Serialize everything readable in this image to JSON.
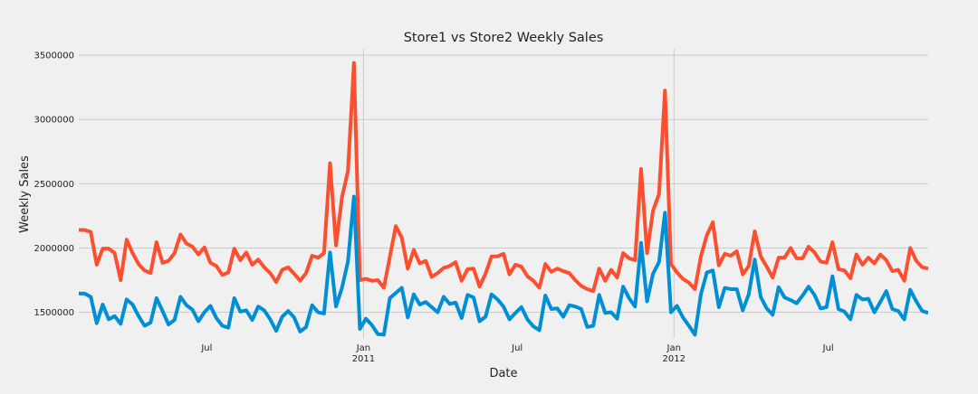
{
  "chart_data": {
    "type": "line",
    "title": "Store1 vs Store2 Weekly Sales",
    "xlabel": "Date",
    "ylabel": "Weekly Sales",
    "ylim": [
      1300000,
      3550000
    ],
    "yticks": [
      1500000,
      2000000,
      2500000,
      3000000,
      3500000
    ],
    "ytick_labels": [
      "1500000",
      "2000000",
      "2500000",
      "3000000",
      "3500000"
    ],
    "week_range": [
      0,
      142
    ],
    "xticks": [
      {
        "week": 21.4,
        "line1": "Jul",
        "line2": ""
      },
      {
        "week": 47.6,
        "line1": "Jan",
        "line2": "2011"
      },
      {
        "week": 73.3,
        "line1": "Jul",
        "line2": ""
      },
      {
        "week": 99.5,
        "line1": "Jan",
        "line2": "2012"
      },
      {
        "week": 125.3,
        "line1": "Jul",
        "line2": ""
      }
    ],
    "grid": true,
    "series": [
      {
        "name": "Store1",
        "color": "#fc4f30",
        "values": [
          2140000,
          2140000,
          2125000,
          1870000,
          1995000,
          1995000,
          1960000,
          1750000,
          2065000,
          1960000,
          1875000,
          1825000,
          1805000,
          2045000,
          1885000,
          1900000,
          1960000,
          2105000,
          2035000,
          2010000,
          1950000,
          2005000,
          1885000,
          1860000,
          1790000,
          1810000,
          1995000,
          1905000,
          1965000,
          1870000,
          1910000,
          1850000,
          1805000,
          1735000,
          1830000,
          1850000,
          1800000,
          1745000,
          1805000,
          1940000,
          1925000,
          1960000,
          2660000,
          2020000,
          2395000,
          2600000,
          3440000,
          1750000,
          1760000,
          1745000,
          1750000,
          1690000,
          1930000,
          2170000,
          2080000,
          1840000,
          1985000,
          1880000,
          1900000,
          1775000,
          1805000,
          1845000,
          1860000,
          1890000,
          1745000,
          1835000,
          1840000,
          1700000,
          1800000,
          1935000,
          1935000,
          1955000,
          1795000,
          1870000,
          1855000,
          1780000,
          1745000,
          1690000,
          1875000,
          1815000,
          1840000,
          1820000,
          1805000,
          1750000,
          1705000,
          1680000,
          1665000,
          1840000,
          1745000,
          1830000,
          1770000,
          1960000,
          1920000,
          1905000,
          2615000,
          1960000,
          2290000,
          2420000,
          3225000,
          1875000,
          1810000,
          1760000,
          1730000,
          1680000,
          1935000,
          2100000,
          2200000,
          1865000,
          1955000,
          1940000,
          1975000,
          1795000,
          1860000,
          2130000,
          1935000,
          1855000,
          1770000,
          1925000,
          1925000,
          2000000,
          1920000,
          1920000,
          2010000,
          1965000,
          1895000,
          1885000,
          2045000,
          1835000,
          1825000,
          1765000,
          1950000,
          1870000,
          1925000,
          1880000,
          1950000,
          1905000,
          1820000,
          1830000,
          1745000,
          2000000,
          1900000,
          1850000,
          1840000
        ]
      },
      {
        "name": "Store2",
        "color": "#008fd5",
        "values": [
          1645000,
          1645000,
          1620000,
          1415000,
          1560000,
          1445000,
          1470000,
          1410000,
          1600000,
          1560000,
          1470000,
          1395000,
          1420000,
          1610000,
          1510000,
          1405000,
          1440000,
          1620000,
          1555000,
          1520000,
          1430000,
          1500000,
          1550000,
          1455000,
          1395000,
          1380000,
          1610000,
          1505000,
          1515000,
          1440000,
          1545000,
          1515000,
          1445000,
          1355000,
          1465000,
          1510000,
          1460000,
          1350000,
          1385000,
          1555000,
          1500000,
          1490000,
          1965000,
          1545000,
          1690000,
          1895000,
          2400000,
          1370000,
          1450000,
          1400000,
          1330000,
          1325000,
          1610000,
          1650000,
          1690000,
          1460000,
          1640000,
          1560000,
          1580000,
          1540000,
          1500000,
          1620000,
          1565000,
          1575000,
          1455000,
          1635000,
          1615000,
          1430000,
          1465000,
          1640000,
          1600000,
          1545000,
          1445000,
          1495000,
          1540000,
          1445000,
          1390000,
          1360000,
          1630000,
          1525000,
          1530000,
          1465000,
          1555000,
          1545000,
          1525000,
          1385000,
          1395000,
          1635000,
          1495000,
          1500000,
          1450000,
          1700000,
          1610000,
          1545000,
          2040000,
          1585000,
          1800000,
          1890000,
          2275000,
          1500000,
          1550000,
          1460000,
          1395000,
          1325000,
          1640000,
          1810000,
          1825000,
          1540000,
          1690000,
          1680000,
          1680000,
          1515000,
          1640000,
          1910000,
          1620000,
          1530000,
          1480000,
          1695000,
          1615000,
          1595000,
          1570000,
          1630000,
          1700000,
          1635000,
          1530000,
          1540000,
          1780000,
          1525000,
          1505000,
          1445000,
          1635000,
          1600000,
          1605000,
          1500000,
          1580000,
          1665000,
          1525000,
          1510000,
          1445000,
          1675000,
          1585000,
          1510000,
          1495000
        ]
      }
    ]
  }
}
